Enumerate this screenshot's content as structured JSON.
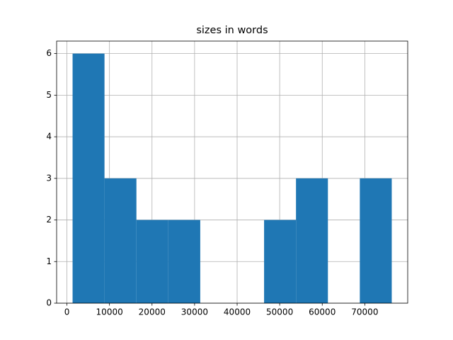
{
  "chart_data": {
    "type": "histogram",
    "title": "sizes in words",
    "bins": [
      1333,
      8833,
      16333,
      23833,
      31333,
      38833,
      46333,
      53833,
      61333,
      68833,
      76333
    ],
    "counts": [
      6,
      3,
      2,
      2,
      0,
      0,
      2,
      3,
      0,
      3
    ],
    "color": "#1f77b4",
    "xlim": [
      -2417,
      80083
    ],
    "xticks": [
      0,
      10000,
      20000,
      30000,
      40000,
      50000,
      60000,
      70000
    ],
    "ylim": [
      0,
      6.3
    ],
    "yticks": [
      0,
      1,
      2,
      3,
      4,
      5,
      6
    ],
    "grid": true
  }
}
